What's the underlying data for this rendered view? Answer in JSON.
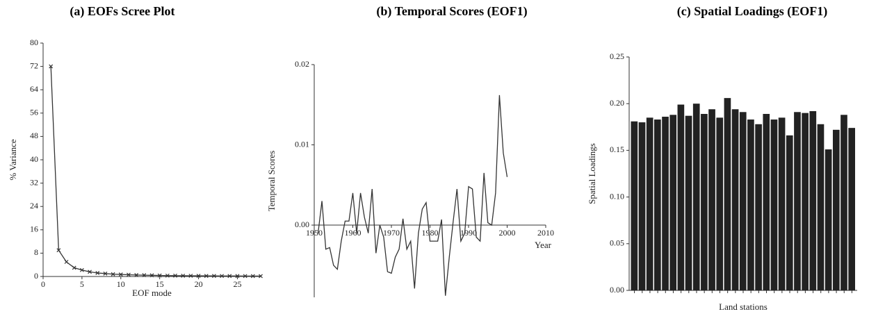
{
  "chart_data": [
    {
      "type": "scree",
      "title": "(a) EOFs Scree Plot",
      "xlabel": "EOF mode",
      "ylabel": "% Variance",
      "color": "#333333",
      "x": [
        1,
        2,
        3,
        4,
        5,
        6,
        7,
        8,
        9,
        10,
        11,
        12,
        13,
        14,
        15,
        16,
        17,
        18,
        19,
        20,
        21,
        22,
        23,
        24,
        25,
        26,
        27,
        28
      ],
      "values": [
        72,
        9,
        5,
        3,
        2.2,
        1.6,
        1.2,
        1,
        0.8,
        0.7,
        0.6,
        0.5,
        0.45,
        0.4,
        0.35,
        0.3,
        0.28,
        0.26,
        0.24,
        0.22,
        0.2,
        0.19,
        0.18,
        0.17,
        0.16,
        0.15,
        0.14,
        0.13
      ],
      "xlim": [
        0,
        28
      ],
      "xticks": [
        0,
        5,
        10,
        15,
        20,
        25
      ],
      "ylim": [
        0,
        80
      ],
      "yticks": [
        0,
        8,
        16,
        24,
        32,
        40,
        48,
        56,
        64,
        72,
        80
      ]
    },
    {
      "type": "line",
      "title": "(b) Temporal Scores (EOF1)",
      "xlabel": "Year",
      "ylabel": "Temporal Scores",
      "color": "#333333",
      "x": [
        1951,
        1952,
        1953,
        1954,
        1955,
        1956,
        1957,
        1958,
        1959,
        1960,
        1961,
        1962,
        1963,
        1964,
        1965,
        1966,
        1967,
        1968,
        1969,
        1970,
        1971,
        1972,
        1973,
        1974,
        1975,
        1976,
        1977,
        1978,
        1979,
        1980,
        1981,
        1982,
        1983,
        1984,
        1985,
        1986,
        1987,
        1988,
        1989,
        1990,
        1991,
        1992,
        1993,
        1994,
        1995,
        1996,
        1997,
        1998,
        1999,
        2000
      ],
      "values": [
        -0.001,
        0.003,
        -0.003,
        -0.0028,
        -0.005,
        -0.0055,
        -0.002,
        0.0005,
        0.0005,
        0.004,
        -0.001,
        0.004,
        0.001,
        -0.001,
        0.0045,
        -0.0035,
        0,
        -0.0015,
        -0.0058,
        -0.006,
        -0.004,
        -0.003,
        0.0008,
        -0.003,
        -0.002,
        -0.0079,
        -0.001,
        0.002,
        0.0028,
        -0.002,
        -0.002,
        -0.002,
        0.0007,
        -0.0088,
        -0.004,
        0.0004,
        0.0045,
        -0.002,
        -0.001,
        0.0048,
        0.0045,
        -0.0015,
        -0.002,
        0.0065,
        0.0003,
        0,
        0.004,
        0.0162,
        0.009,
        0.006
      ],
      "xlim": [
        1950,
        2010
      ],
      "xticks": [
        1950,
        1960,
        1970,
        1980,
        1990,
        2000,
        2010
      ],
      "ylim": [
        -0.009,
        0.02
      ],
      "yticks": [
        {
          "value": 0,
          "label": "0.00"
        },
        {
          "value": 0.01,
          "label": "0.01"
        },
        {
          "value": 0.02,
          "label": "0.02"
        }
      ]
    },
    {
      "type": "bar",
      "title": "(c) Spatial Loadings (EOF1)",
      "xlabel": "Land stations",
      "ylabel": "Spatial Loadings",
      "color": "#222222",
      "categories": [
        null,
        null,
        null,
        null,
        null,
        null,
        null,
        null,
        null,
        null,
        null,
        null,
        null,
        null,
        null,
        null,
        null,
        null,
        null,
        null,
        null,
        null,
        null,
        null,
        null,
        null,
        null,
        null,
        null
      ],
      "values": [
        0.181,
        0.18,
        0.185,
        0.183,
        0.186,
        0.188,
        0.199,
        0.187,
        0.2,
        0.189,
        0.194,
        0.185,
        0.206,
        0.194,
        0.191,
        0.183,
        0.178,
        0.189,
        0.183,
        0.185,
        0.166,
        0.191,
        0.19,
        0.192,
        0.178,
        0.151,
        0.172,
        0.188,
        0.174
      ],
      "ylim": [
        0,
        0.25
      ],
      "yticks": [
        {
          "value": 0,
          "label": "0.00"
        },
        {
          "value": 0.05,
          "label": "0.05"
        },
        {
          "value": 0.1,
          "label": "0.10"
        },
        {
          "value": 0.15,
          "label": "0.15"
        },
        {
          "value": 0.2,
          "label": "0.20"
        },
        {
          "value": 0.25,
          "label": "0.25"
        }
      ]
    }
  ]
}
